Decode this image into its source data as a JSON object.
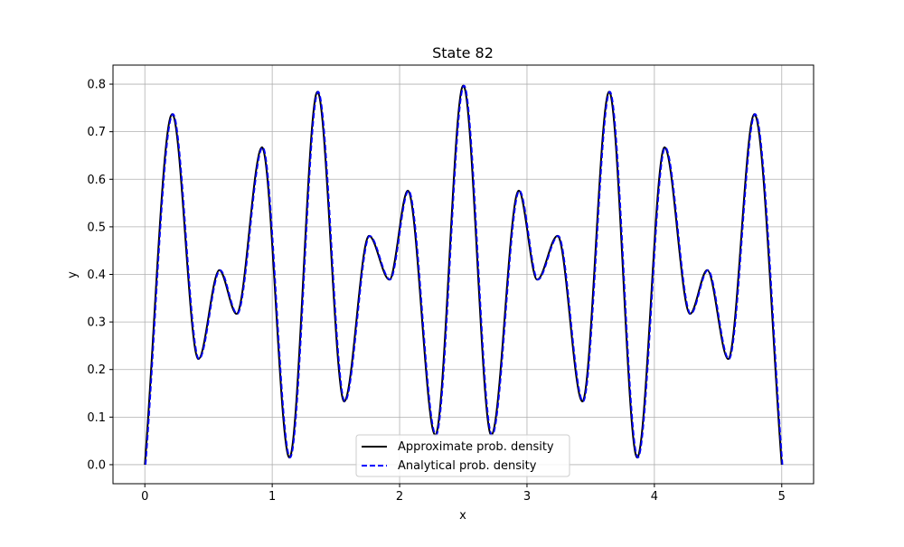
{
  "chart_data": {
    "type": "line",
    "title": "State 82",
    "xlabel": "x",
    "ylabel": "y",
    "xlim": [
      -0.25,
      5.25
    ],
    "ylim": [
      -0.04,
      0.84
    ],
    "grid": true,
    "legend_position": "lower center",
    "x_ticks": [
      0,
      1,
      2,
      3,
      4,
      5
    ],
    "x_tick_labels": [
      "0",
      "1",
      "2",
      "3",
      "4",
      "5"
    ],
    "y_ticks": [
      0.0,
      0.1,
      0.2,
      0.3,
      0.4,
      0.5,
      0.6,
      0.7,
      0.8
    ],
    "y_tick_labels": [
      "0.0",
      "0.1",
      "0.2",
      "0.3",
      "0.4",
      "0.5",
      "0.6",
      "0.7",
      "0.8"
    ],
    "key_points": [
      [
        0.0,
        0.0
      ],
      [
        0.215,
        0.737
      ],
      [
        0.42,
        0.222
      ],
      [
        0.585,
        0.409
      ],
      [
        0.72,
        0.317
      ],
      [
        0.92,
        0.667
      ],
      [
        1.135,
        0.015
      ],
      [
        1.355,
        0.784
      ],
      [
        1.565,
        0.133
      ],
      [
        1.76,
        0.481
      ],
      [
        1.92,
        0.389
      ],
      [
        2.065,
        0.576
      ],
      [
        2.28,
        0.062
      ],
      [
        2.5,
        0.797
      ],
      [
        2.72,
        0.062
      ],
      [
        2.935,
        0.576
      ],
      [
        3.08,
        0.389
      ],
      [
        3.24,
        0.481
      ],
      [
        3.435,
        0.133
      ],
      [
        3.645,
        0.784
      ],
      [
        3.865,
        0.015
      ],
      [
        4.08,
        0.667
      ],
      [
        4.28,
        0.317
      ],
      [
        4.415,
        0.409
      ],
      [
        4.58,
        0.222
      ],
      [
        4.785,
        0.737
      ],
      [
        5.0,
        0.0
      ]
    ],
    "series": [
      {
        "name": "Approximate prob. density",
        "color": "#000000",
        "style": "solid"
      },
      {
        "name": "Analytical prob. density",
        "color": "#0000ff",
        "style": "dashed"
      }
    ]
  }
}
